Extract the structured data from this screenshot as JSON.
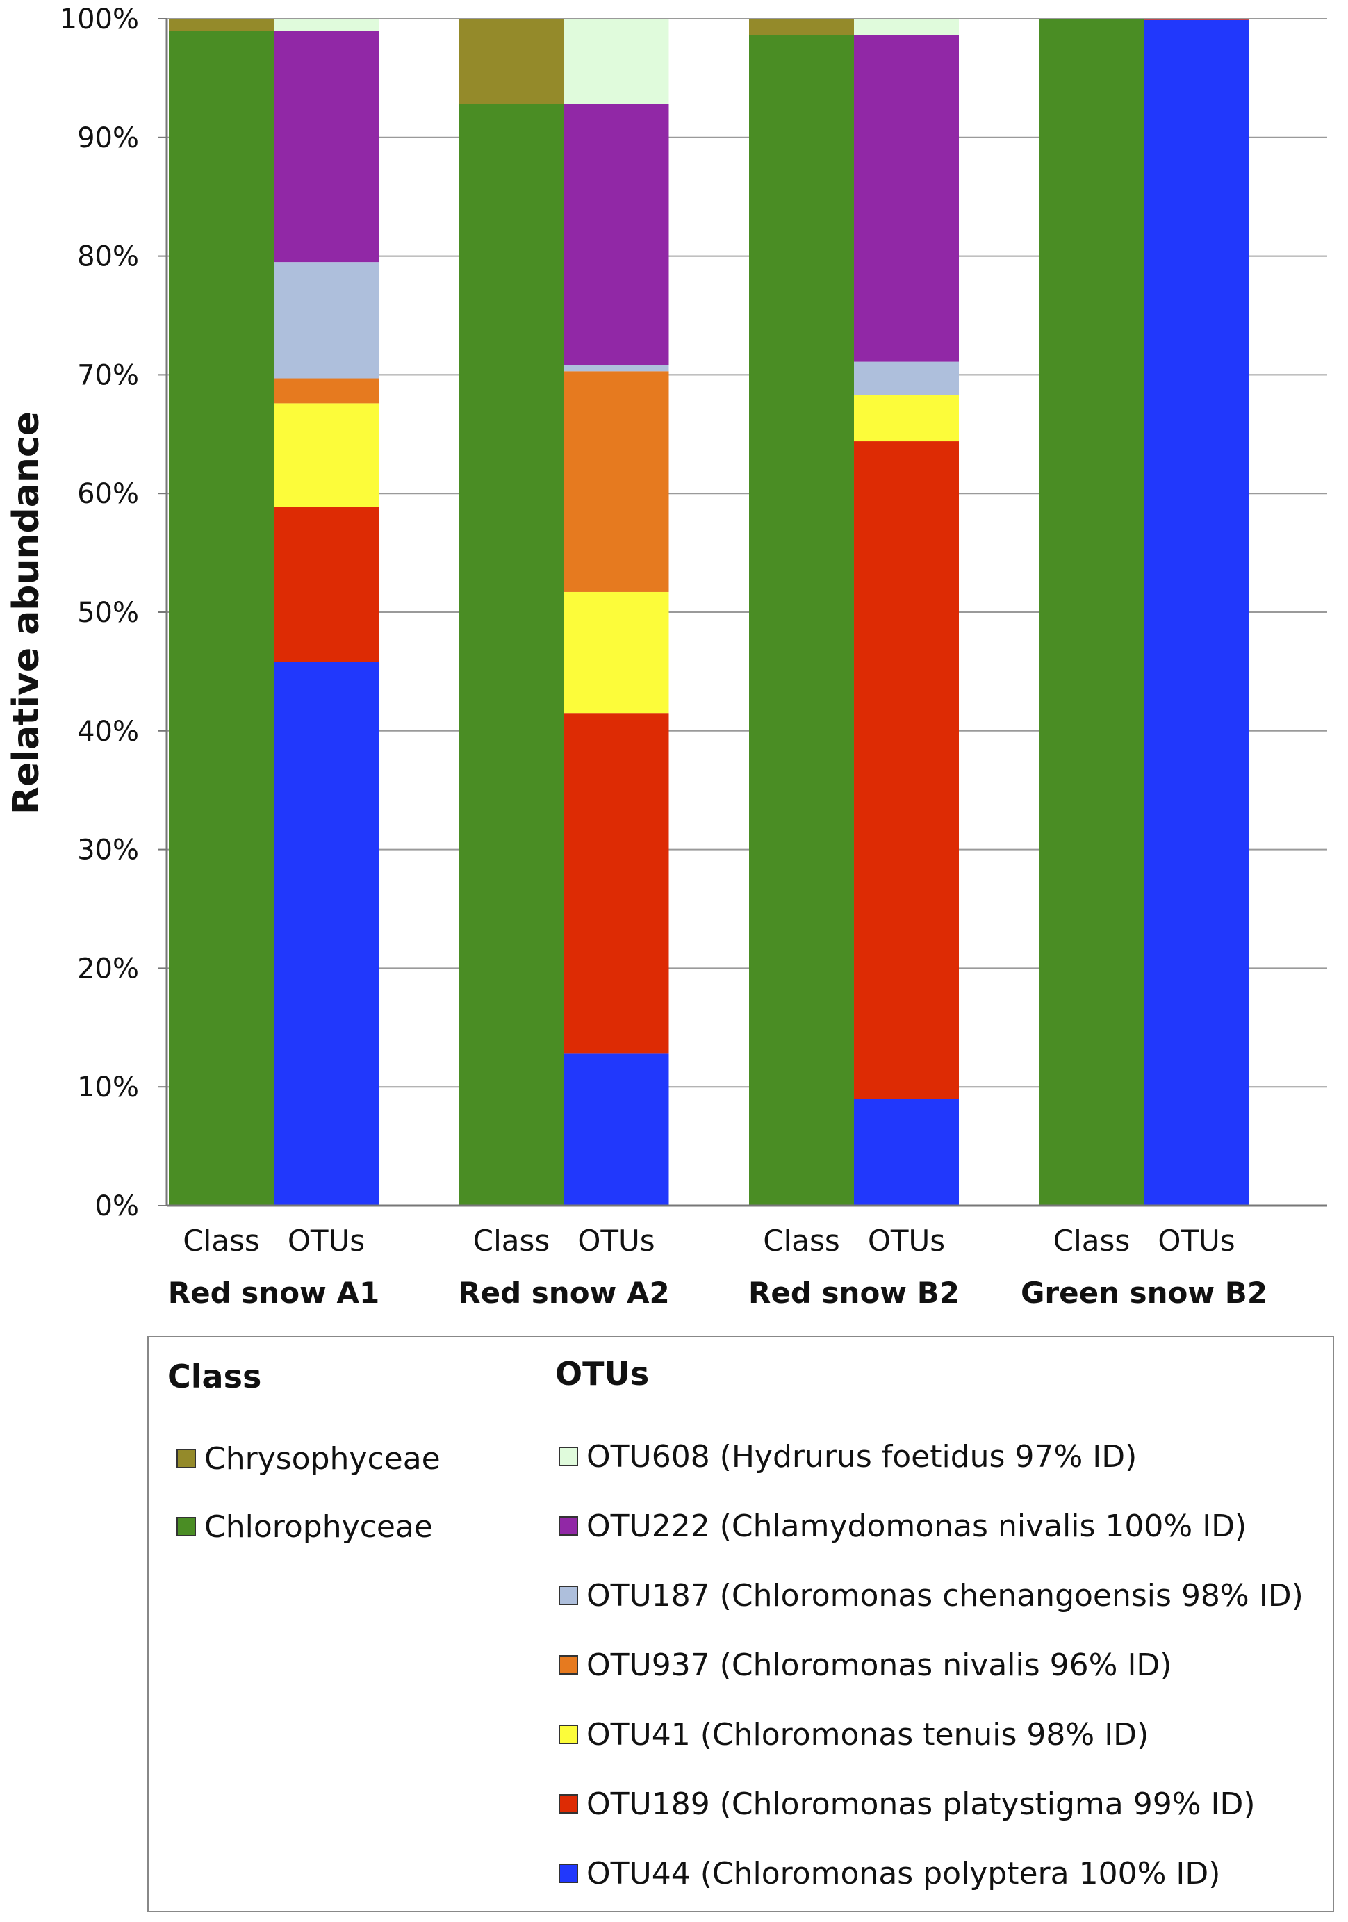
{
  "chart_data": {
    "type": "bar",
    "stacked": true,
    "ylabel": "Relative abundance",
    "ylim": [
      0,
      100
    ],
    "yticks": [
      0,
      10,
      20,
      30,
      40,
      50,
      60,
      70,
      80,
      90,
      100
    ],
    "ytick_labels": [
      "0%",
      "10%",
      "20%",
      "30%",
      "40%",
      "50%",
      "60%",
      "70%",
      "80%",
      "90%",
      "100%"
    ],
    "grid": true,
    "colors": {
      "Chrysophyceae": "#948a2a",
      "Chlorophyceae": "#4a8d24",
      "OTU608": "#e0fbdc",
      "OTU222": "#9128a6",
      "OTU187": "#aebfdc",
      "OTU937": "#e67a1f",
      "OTU41": "#fcfc3a",
      "OTU189": "#dd2b04",
      "OTU44": "#2138fc"
    },
    "groups": [
      {
        "name": "Red snow A1",
        "bars": [
          {
            "label": "Class",
            "segments": [
              {
                "key": "Chlorophyceae",
                "value": 99
              },
              {
                "key": "Chrysophyceae",
                "value": 1
              }
            ]
          },
          {
            "label": "OTUs",
            "segments": [
              {
                "key": "OTU44",
                "value": 45.8
              },
              {
                "key": "OTU189",
                "value": 13.1
              },
              {
                "key": "OTU41",
                "value": 8.7
              },
              {
                "key": "OTU937",
                "value": 2.1
              },
              {
                "key": "OTU187",
                "value": 9.8
              },
              {
                "key": "OTU222",
                "value": 19.5
              },
              {
                "key": "OTU608",
                "value": 1.0
              }
            ]
          }
        ]
      },
      {
        "name": "Red snow A2",
        "bars": [
          {
            "label": "Class",
            "segments": [
              {
                "key": "Chlorophyceae",
                "value": 92.8
              },
              {
                "key": "Chrysophyceae",
                "value": 7.2
              }
            ]
          },
          {
            "label": "OTUs",
            "segments": [
              {
                "key": "OTU44",
                "value": 12.8
              },
              {
                "key": "OTU189",
                "value": 28.7
              },
              {
                "key": "OTU41",
                "value": 10.2
              },
              {
                "key": "OTU937",
                "value": 18.6
              },
              {
                "key": "OTU187",
                "value": 0.5
              },
              {
                "key": "OTU222",
                "value": 22.0
              },
              {
                "key": "OTU608",
                "value": 7.2
              }
            ]
          }
        ]
      },
      {
        "name": "Red snow B2",
        "bars": [
          {
            "label": "Class",
            "segments": [
              {
                "key": "Chlorophyceae",
                "value": 98.6
              },
              {
                "key": "Chrysophyceae",
                "value": 1.4
              }
            ]
          },
          {
            "label": "OTUs",
            "segments": [
              {
                "key": "OTU44",
                "value": 9.0
              },
              {
                "key": "OTU189",
                "value": 55.4
              },
              {
                "key": "OTU41",
                "value": 3.9
              },
              {
                "key": "OTU937",
                "value": 0.0
              },
              {
                "key": "OTU187",
                "value": 2.8
              },
              {
                "key": "OTU222",
                "value": 27.5
              },
              {
                "key": "OTU608",
                "value": 1.4
              }
            ]
          }
        ]
      },
      {
        "name": "Green snow B2",
        "bars": [
          {
            "label": "Class",
            "segments": [
              {
                "key": "Chlorophyceae",
                "value": 100
              }
            ]
          },
          {
            "label": "OTUs",
            "segments": [
              {
                "key": "OTU44",
                "value": 99.9
              },
              {
                "key": "OTU189",
                "value": 0.1
              }
            ]
          }
        ]
      }
    ]
  },
  "legend": {
    "class_heading": "Class",
    "otus_heading": "OTUs",
    "class_items": [
      {
        "key": "Chrysophyceae",
        "label": "Chrysophyceae"
      },
      {
        "key": "Chlorophyceae",
        "label": "Chlorophyceae"
      }
    ],
    "otu_items": [
      {
        "key": "OTU608",
        "label": "OTU608 (Hydrurus foetidus 97% ID)"
      },
      {
        "key": "OTU222",
        "label": "OTU222 (Chlamydomonas nivalis 100% ID)"
      },
      {
        "key": "OTU187",
        "label": "OTU187 (Chloromonas chenangoensis 98% ID)"
      },
      {
        "key": "OTU937",
        "label": "OTU937 (Chloromonas nivalis 96% ID)"
      },
      {
        "key": "OTU41",
        "label": "OTU41 (Chloromonas tenuis 98% ID)"
      },
      {
        "key": "OTU189",
        "label": "OTU189 (Chloromonas platystigma 99% ID)"
      },
      {
        "key": "OTU44",
        "label": "OTU44 (Chloromonas polyptera 100% ID)"
      }
    ]
  }
}
